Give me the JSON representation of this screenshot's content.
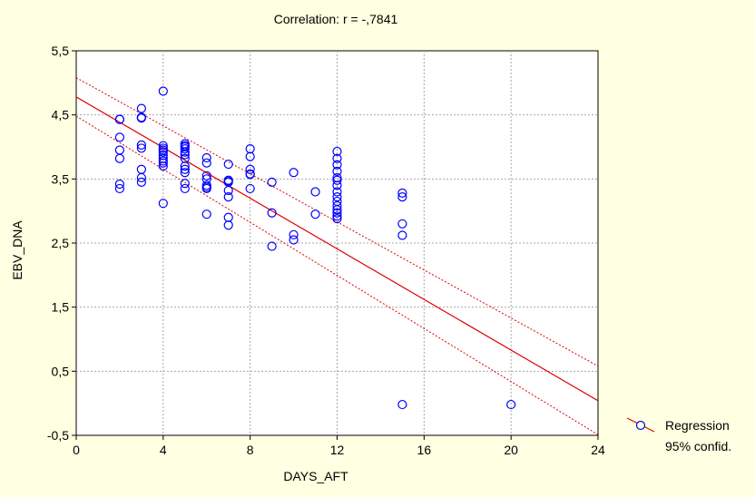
{
  "chart_data": {
    "type": "scatter",
    "title": "Correlation: r = -,7841",
    "xlabel": "DAYS_AFT",
    "ylabel": "EBV_DNA",
    "xlim": [
      0,
      24
    ],
    "ylim": [
      -0.5,
      5.5
    ],
    "xticks": [
      0,
      4,
      8,
      12,
      16,
      20,
      24
    ],
    "xtick_labels": [
      "0",
      "4",
      "8",
      "12",
      "16",
      "20",
      "24"
    ],
    "yticks": [
      -0.5,
      0.5,
      1.5,
      2.5,
      3.5,
      4.5,
      5.5
    ],
    "ytick_labels": [
      "-0,5",
      "0,5",
      "1,5",
      "2,5",
      "3,5",
      "4,5",
      "5,5"
    ],
    "grid": true,
    "legend": {
      "position": "right",
      "entries": [
        "Regression",
        "95% confid."
      ]
    },
    "colors": {
      "points": "#0000FF",
      "regression": "#E00000",
      "confidence": "#E00000",
      "background": "#FFFFE1",
      "plot_area": "#FFFFFF"
    },
    "regression": {
      "intercept": 4.78,
      "slope": -0.1975,
      "x_range": [
        0,
        24
      ]
    },
    "confidence_band": {
      "upper": [
        [
          0,
          5.08
        ],
        [
          24,
          0.58
        ]
      ],
      "lower": [
        [
          0,
          4.48
        ],
        [
          24,
          -0.49
        ]
      ]
    },
    "series": [
      {
        "x": [
          2,
          2,
          2,
          2,
          2,
          2,
          2,
          3,
          3,
          3,
          3,
          3,
          3,
          3,
          3,
          3,
          4,
          4,
          4,
          4,
          4,
          4,
          4,
          4,
          4,
          4,
          4,
          5,
          5,
          5,
          5,
          5,
          5,
          5,
          5,
          5,
          5,
          5,
          5,
          6,
          6,
          6,
          6,
          6,
          6,
          6,
          6,
          7,
          7,
          7,
          7,
          7,
          7,
          7,
          7,
          8,
          8,
          8,
          8,
          8,
          8,
          9,
          9,
          9,
          10,
          10,
          10,
          11,
          11,
          12,
          12,
          12,
          12,
          12,
          12,
          12,
          12,
          12,
          12,
          12,
          12,
          12,
          12,
          12,
          15,
          15,
          15,
          15,
          15,
          20
        ],
        "y": [
          4.43,
          4.15,
          3.95,
          3.82,
          3.42,
          3.35,
          4.43,
          4.6,
          4.46,
          4.45,
          4.03,
          3.98,
          3.65,
          3.52,
          3.45,
          4.46,
          4.87,
          4.02,
          3.98,
          3.92,
          3.87,
          3.82,
          3.78,
          3.75,
          3.7,
          3.12,
          3.95,
          4.05,
          4.02,
          3.97,
          3.92,
          3.88,
          3.82,
          3.7,
          3.65,
          3.6,
          3.43,
          3.35,
          4.0,
          3.83,
          3.75,
          3.55,
          3.5,
          3.4,
          3.35,
          2.95,
          3.37,
          3.73,
          3.48,
          3.45,
          3.32,
          3.22,
          2.9,
          2.78,
          3.47,
          3.97,
          3.85,
          3.65,
          3.57,
          3.35,
          3.58,
          3.45,
          2.97,
          2.45,
          3.6,
          2.63,
          2.55,
          3.3,
          2.95,
          3.93,
          3.82,
          3.72,
          3.62,
          3.52,
          3.4,
          3.3,
          3.22,
          3.15,
          3.08,
          3.02,
          2.97,
          2.92,
          2.88,
          3.48,
          3.28,
          3.22,
          2.8,
          2.62,
          -0.02,
          -0.02
        ]
      }
    ]
  }
}
